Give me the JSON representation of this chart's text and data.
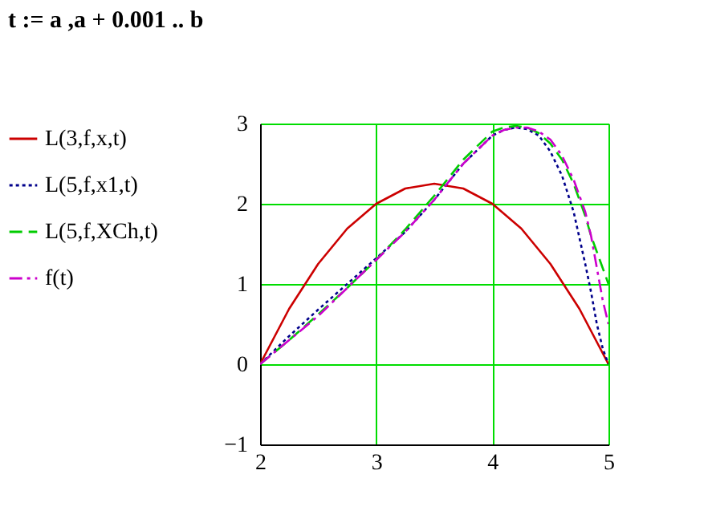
{
  "chart_data": {
    "type": "line",
    "annotations": [
      "t := a ,a + 0.001 .. b"
    ],
    "xlim": [
      2,
      5
    ],
    "xticks": [
      2,
      3,
      4,
      5
    ],
    "ylim": [
      -1,
      3
    ],
    "yticks": [
      -1,
      0,
      1,
      2,
      3
    ],
    "grid": true,
    "legend": "left",
    "series": [
      {
        "name": "L(3,f,x,t)",
        "color": "#cc0000",
        "line_style": "solid",
        "x": [
          2,
          2.25,
          2.5,
          2.75,
          3,
          3.25,
          3.5,
          3.75,
          4,
          4.25,
          4.5,
          4.75,
          5
        ],
        "values": [
          0,
          0.69,
          1.25,
          1.69,
          2.0,
          2.19,
          2.25,
          2.19,
          2.0,
          1.69,
          1.25,
          0.69,
          0
        ]
      },
      {
        "name": "L(5,f,x1,t)",
        "color": "#00008b",
        "line_style": "dotted",
        "x": [
          2,
          2.25,
          2.5,
          2.75,
          3,
          3.25,
          3.5,
          3.75,
          4,
          4.1,
          4.2,
          4.3,
          4.4,
          4.5,
          4.6,
          4.7,
          4.8,
          4.85,
          4.9,
          4.95,
          5
        ],
        "values": [
          0,
          0.35,
          0.68,
          1.0,
          1.32,
          1.65,
          2.05,
          2.5,
          2.85,
          2.92,
          2.95,
          2.93,
          2.85,
          2.65,
          2.35,
          1.9,
          1.25,
          0.9,
          0.5,
          0.2,
          0
        ]
      },
      {
        "name": "L(5,f,XCh,t)",
        "color": "#00cc00",
        "line_style": "dashed",
        "x": [
          2,
          2.25,
          2.5,
          2.75,
          3,
          3.25,
          3.5,
          3.75,
          4,
          4.1,
          4.2,
          4.3,
          4.4,
          4.5,
          4.6,
          4.7,
          4.8,
          4.85,
          4.9,
          4.95,
          5
        ],
        "values": [
          0,
          0.3,
          0.62,
          0.95,
          1.3,
          1.68,
          2.1,
          2.55,
          2.9,
          2.95,
          2.97,
          2.95,
          2.88,
          2.75,
          2.55,
          2.25,
          1.85,
          1.6,
          1.4,
          1.2,
          1.0
        ]
      },
      {
        "name": "f(t)",
        "color": "#cc00cc",
        "line_style": "dashdot",
        "x": [
          2,
          2.25,
          2.5,
          2.75,
          3,
          3.25,
          3.5,
          3.75,
          4,
          4.1,
          4.2,
          4.3,
          4.4,
          4.5,
          4.6,
          4.7,
          4.8,
          4.85,
          4.9,
          4.95,
          5
        ],
        "values": [
          0,
          0.3,
          0.6,
          0.95,
          1.3,
          1.65,
          2.05,
          2.5,
          2.85,
          2.92,
          2.95,
          2.95,
          2.9,
          2.8,
          2.6,
          2.3,
          1.9,
          1.6,
          1.2,
          0.8,
          0.5
        ]
      }
    ]
  }
}
